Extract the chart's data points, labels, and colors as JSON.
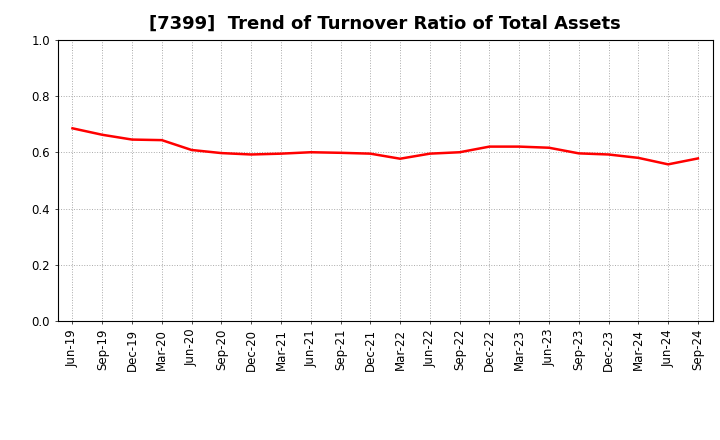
{
  "title": "[7399]  Trend of Turnover Ratio of Total Assets",
  "x_labels": [
    "Jun-19",
    "Sep-19",
    "Dec-19",
    "Mar-20",
    "Jun-20",
    "Sep-20",
    "Dec-20",
    "Mar-21",
    "Jun-21",
    "Sep-21",
    "Dec-21",
    "Mar-22",
    "Jun-22",
    "Sep-22",
    "Dec-22",
    "Mar-23",
    "Jun-23",
    "Sep-23",
    "Dec-23",
    "Mar-24",
    "Jun-24",
    "Sep-24"
  ],
  "values": [
    0.685,
    0.662,
    0.645,
    0.643,
    0.608,
    0.597,
    0.592,
    0.595,
    0.6,
    0.598,
    0.595,
    0.577,
    0.595,
    0.6,
    0.62,
    0.62,
    0.616,
    0.596,
    0.592,
    0.58,
    0.557,
    0.578
  ],
  "line_color": "#FF0000",
  "line_width": 1.8,
  "ylim": [
    0.0,
    1.0
  ],
  "yticks": [
    0.0,
    0.2,
    0.4,
    0.6,
    0.8,
    1.0
  ],
  "background_color": "#FFFFFF",
  "plot_bg_color": "#FFFFFF",
  "grid_color": "#AAAAAA",
  "title_fontsize": 13,
  "tick_fontsize": 8.5
}
